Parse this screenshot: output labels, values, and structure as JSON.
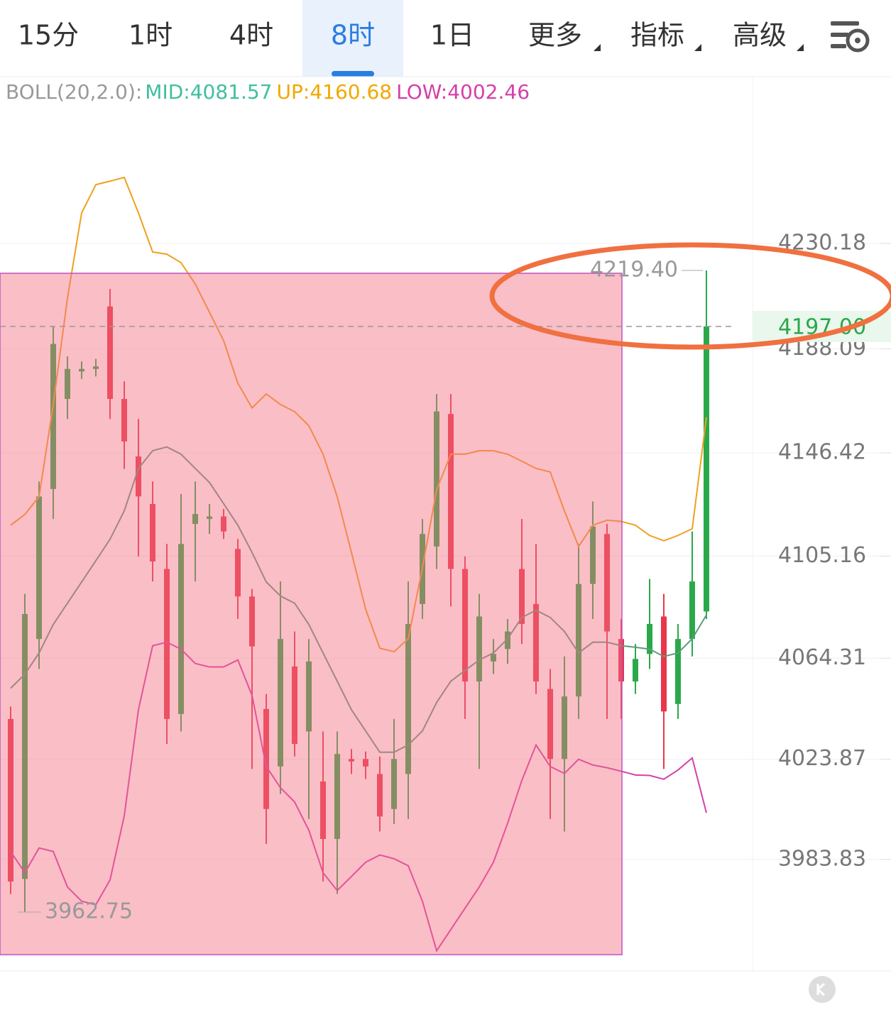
{
  "tabs": [
    "15分",
    "1时",
    "4时",
    "8时",
    "1日",
    "更多",
    "指标",
    "高级"
  ],
  "active_tab": 3,
  "chart_data": {
    "type": "candlestick",
    "indicator_label": "BOLL(20,2.0):",
    "ylim": [
      3939.2,
      4296.9
    ],
    "yticks": [
      4230.18,
      4188.09,
      4146.42,
      4105.16,
      4064.31,
      4023.87,
      3983.83
    ],
    "grid": true,
    "up_color": "#2ba84a",
    "down_color": "#e8364a",
    "candles": [
      [
        4040,
        4045,
        3970,
        3975
      ],
      [
        3976,
        4090,
        3962.75,
        4082
      ],
      [
        4072,
        4135,
        4060,
        4129
      ],
      [
        4132,
        4197,
        4120,
        4190
      ],
      [
        4168,
        4185,
        4160,
        4180
      ],
      [
        4179,
        4183,
        4176,
        4180
      ],
      [
        4180,
        4184,
        4177,
        4181
      ],
      [
        4205,
        4212,
        4160,
        4168
      ],
      [
        4168,
        4175,
        4140,
        4151
      ],
      [
        4145,
        4160,
        4105,
        4129
      ],
      [
        4126,
        4135,
        4095,
        4103
      ],
      [
        4100,
        4110,
        4030,
        4040
      ],
      [
        4042,
        4130,
        4035,
        4110
      ],
      [
        4118,
        4135,
        4095,
        4122
      ],
      [
        4120,
        4126,
        4114,
        4121
      ],
      [
        4121,
        4124,
        4112,
        4115
      ],
      [
        4108,
        4112,
        4080,
        4089
      ],
      [
        4089,
        4092,
        4020,
        4069
      ],
      [
        4044,
        4050,
        3990,
        4004
      ],
      [
        4021,
        4095,
        4010,
        4072
      ],
      [
        4061,
        4075,
        4025,
        4030
      ],
      [
        4035,
        4072,
        4000,
        4063
      ],
      [
        4015,
        4035,
        3975,
        3992
      ],
      [
        3992,
        4035,
        3970,
        4026
      ],
      [
        4024,
        4028,
        4018,
        4023
      ],
      [
        4024,
        4027,
        4016,
        4021
      ],
      [
        4018,
        4025,
        3995,
        4001
      ],
      [
        4004,
        4040,
        3998,
        4024
      ],
      [
        4018,
        4095,
        4000,
        4078
      ],
      [
        4086,
        4120,
        4080,
        4114
      ],
      [
        4109,
        4170,
        4100,
        4163
      ],
      [
        4162,
        4170,
        4085,
        4100
      ],
      [
        4100,
        4105,
        4040,
        4055
      ],
      [
        4055,
        4090,
        4020,
        4081
      ],
      [
        4063,
        4072,
        4058,
        4066
      ],
      [
        4068,
        4080,
        4062,
        4075
      ],
      [
        4100,
        4120,
        4070,
        4078
      ],
      [
        4086,
        4110,
        4050,
        4055
      ],
      [
        4052,
        4060,
        4000,
        4024
      ],
      [
        4024,
        4065,
        3995,
        4049
      ],
      [
        4049,
        4110,
        4040,
        4094
      ],
      [
        4094,
        4127,
        4080,
        4117
      ],
      [
        4114,
        4118,
        4040,
        4075
      ],
      [
        4072,
        4080,
        4040,
        4055
      ],
      [
        4055,
        4070,
        4050,
        4064
      ],
      [
        4066,
        4096,
        4060,
        4078
      ],
      [
        4081,
        4090,
        4020,
        4043
      ],
      [
        4046,
        4078,
        4040,
        4072
      ],
      [
        4072,
        4115,
        4065,
        4095
      ],
      [
        4083,
        4219.4,
        4080,
        4197
      ]
    ],
    "series": [
      {
        "name": "MID:4081.57",
        "color": "#3fbfa0",
        "line_color": "#5f9a7e",
        "values": [
          4052.3,
          4057.9,
          4066.4,
          4077.8,
          4086.3,
          4094.8,
          4103.3,
          4111.9,
          4123.2,
          4140.2,
          4147.3,
          4148.8,
          4145.9,
          4140.2,
          4134.6,
          4126.1,
          4117.5,
          4106.6,
          4094.8,
          4089.2,
          4086.3,
          4077.8,
          4066.4,
          4055.1,
          4043.7,
          4035.2,
          4026.7,
          4026.7,
          4029.6,
          4035.2,
          4046.6,
          4055.1,
          4059.4,
          4063.6,
          4066.4,
          4072.1,
          4080.6,
          4083.5,
          4080.6,
          4075.0,
          4066.4,
          4070.7,
          4070.7,
          4069.3,
          4068.7,
          4067.9,
          4065.0,
          4066.4,
          4072.1,
          4081.57
        ]
      },
      {
        "name": "UP:4160.68",
        "color": "#f0a800",
        "line_color": "#f0a020",
        "values": [
          4117.5,
          4121.8,
          4128.9,
          4165.8,
          4208.3,
          4242.4,
          4253.7,
          4255.1,
          4256.6,
          4242.4,
          4226.8,
          4225.9,
          4222.5,
          4214.0,
          4202.7,
          4191.3,
          4174.3,
          4164.4,
          4170.0,
          4165.8,
          4162.9,
          4157.3,
          4145.9,
          4128.9,
          4106.6,
          4083.9,
          4068.3,
          4066.9,
          4072.1,
          4100.5,
          4131.7,
          4145.9,
          4145.9,
          4147.3,
          4147.3,
          4145.9,
          4143.1,
          4140.2,
          4138.8,
          4123.2,
          4109.0,
          4117.5,
          4119.5,
          4119.0,
          4117.5,
          4113.4,
          4111.3,
          4113.4,
          4116.1,
          4160.68
        ]
      },
      {
        "name": "LOW:4002.46",
        "color": "#d63fa8",
        "line_color": "#d63fa8",
        "values": [
          3987.0,
          3978.5,
          3988.4,
          3987.0,
          3972.8,
          3967.1,
          3965.7,
          3975.6,
          4001.2,
          4043.7,
          4069.3,
          4070.7,
          4067.9,
          4062.2,
          4060.8,
          4060.8,
          4063.6,
          4049.4,
          4021.0,
          4012.5,
          4006.8,
          3995.5,
          3978.5,
          3971.4,
          3977.0,
          3982.7,
          3985.6,
          3984.1,
          3981.3,
          3967.1,
          3947.3,
          3955.8,
          3964.3,
          3972.8,
          3982.7,
          3998.3,
          4015.4,
          4029.6,
          4021.0,
          4018.2,
          4023.9,
          4021.6,
          4020.5,
          4019.1,
          4017.6,
          4017.4,
          4015.9,
          4019.6,
          4024.4,
          4002.46
        ]
      }
    ],
    "last_price": {
      "value": 4197,
      "label": "4197.00"
    },
    "high_marker": {
      "value": 4219.4,
      "label": "4219.40"
    },
    "low_marker": 3962.75
  }
}
